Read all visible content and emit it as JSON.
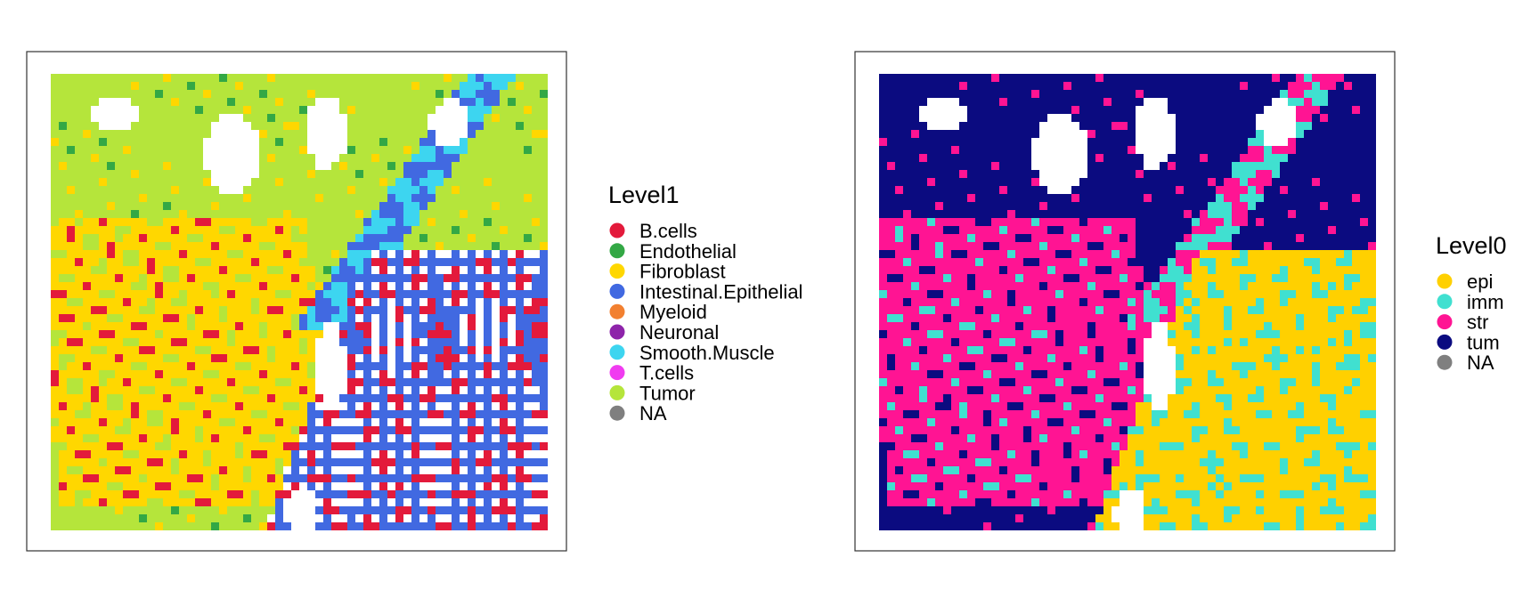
{
  "chart_data": [
    {
      "type": "scatter",
      "title": "",
      "xlabel": "",
      "ylabel": "",
      "grid": false,
      "legend_position": "right",
      "legend": {
        "title": "Level1",
        "entries": [
          {
            "label": "B.cells",
            "color": "#E31A3B"
          },
          {
            "label": "Endothelial",
            "color": "#33A845"
          },
          {
            "label": "Fibroblast",
            "color": "#FFD700"
          },
          {
            "label": "Intestinal.Epithelial",
            "color": "#4169E1"
          },
          {
            "label": "Myeloid",
            "color": "#F28030"
          },
          {
            "label": "Neuronal",
            "color": "#8E24AA"
          },
          {
            "label": "Smooth.Muscle",
            "color": "#3DD5F0"
          },
          {
            "label": "T.cells",
            "color": "#F03CF0"
          },
          {
            "label": "Tumor",
            "color": "#B5E53B"
          },
          {
            "label": "NA",
            "color": "#7F7F7F"
          }
        ]
      }
    },
    {
      "type": "scatter",
      "title": "",
      "xlabel": "",
      "ylabel": "",
      "grid": false,
      "legend_position": "right",
      "legend": {
        "title": "Level0",
        "entries": [
          {
            "label": "epi",
            "color": "#FFD000"
          },
          {
            "label": "imm",
            "color": "#40E0D0"
          },
          {
            "label": "str",
            "color": "#FF1493"
          },
          {
            "label": "tum",
            "color": "#0B0B80"
          },
          {
            "label": "NA",
            "color": "#7F7F7F"
          }
        ]
      }
    }
  ]
}
